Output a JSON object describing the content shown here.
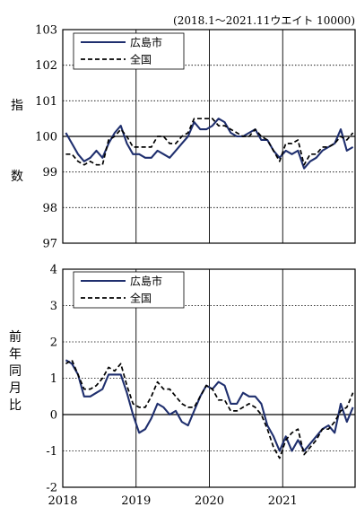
{
  "chart_data": [
    {
      "type": "line",
      "note": "(2018.1〜2021.11ウエイト 10000)",
      "ylabel": [
        "指",
        "数"
      ],
      "ylim": [
        97,
        103
      ],
      "yticks": [
        97,
        98,
        99,
        100,
        101,
        102,
        103
      ],
      "baseline": 100,
      "grid": "dotted horizontal, solid vertical at year boundaries",
      "legend_position": "top-left",
      "series": [
        {
          "name": "広島市",
          "color": "#1f2f6e",
          "style": "solid",
          "values": [
            100.1,
            99.8,
            99.5,
            99.3,
            99.4,
            99.6,
            99.4,
            99.8,
            100.1,
            100.3,
            99.8,
            99.5,
            99.5,
            99.4,
            99.4,
            99.6,
            99.5,
            99.4,
            99.6,
            99.8,
            100.0,
            100.4,
            100.2,
            100.2,
            100.3,
            100.5,
            100.4,
            100.1,
            100.0,
            100.0,
            100.1,
            100.2,
            99.9,
            99.9,
            99.6,
            99.4,
            99.6,
            99.5,
            99.6,
            99.1,
            99.3,
            99.4,
            99.6,
            99.7,
            99.8,
            100.2,
            99.6,
            99.7
          ],
          "x_start": "2018-01"
        },
        {
          "name": "全国",
          "color": "#000000",
          "style": "dashed",
          "values": [
            99.5,
            99.5,
            99.3,
            99.2,
            99.3,
            99.2,
            99.2,
            99.9,
            100.0,
            100.2,
            100.0,
            99.7,
            99.7,
            99.7,
            99.7,
            100.0,
            100.0,
            99.8,
            99.8,
            100.0,
            100.1,
            100.5,
            100.5,
            100.5,
            100.5,
            100.3,
            100.3,
            100.2,
            100.1,
            100.0,
            100.0,
            100.2,
            100.0,
            99.9,
            99.6,
            99.3,
            99.8,
            99.8,
            99.9,
            99.2,
            99.5,
            99.5,
            99.7,
            99.7,
            99.8,
            100.0,
            99.9,
            100.1
          ],
          "x_start": "2018-01"
        }
      ]
    },
    {
      "type": "line",
      "ylabel": [
        "前",
        "年",
        "同",
        "月",
        "比"
      ],
      "ylim": [
        -2,
        4
      ],
      "yticks": [
        -2,
        -1,
        0,
        1,
        2,
        3,
        4
      ],
      "baseline": 0,
      "grid": "dotted horizontal, solid vertical at year boundaries",
      "legend_position": "top-left",
      "series": [
        {
          "name": "広島市",
          "color": "#1f2f6e",
          "style": "solid",
          "values": [
            1.5,
            1.4,
            1.1,
            0.5,
            0.5,
            0.6,
            0.7,
            1.1,
            1.1,
            1.1,
            0.6,
            0.0,
            -0.5,
            -0.4,
            -0.1,
            0.3,
            0.2,
            0.0,
            0.1,
            -0.2,
            -0.3,
            0.1,
            0.5,
            0.8,
            0.7,
            0.9,
            0.8,
            0.3,
            0.3,
            0.6,
            0.5,
            0.5,
            0.3,
            -0.3,
            -0.6,
            -1.0,
            -0.6,
            -1.0,
            -0.7,
            -1.0,
            -0.8,
            -0.6,
            -0.4,
            -0.3,
            -0.5,
            0.3,
            -0.2,
            0.2
          ],
          "x_start": "2018-01"
        },
        {
          "name": "全国",
          "color": "#000000",
          "style": "dashed",
          "values": [
            1.4,
            1.5,
            1.1,
            0.7,
            0.7,
            0.8,
            1.0,
            1.3,
            1.2,
            1.4,
            0.8,
            0.3,
            0.2,
            0.2,
            0.5,
            0.9,
            0.7,
            0.7,
            0.5,
            0.3,
            0.2,
            0.2,
            0.5,
            0.8,
            0.7,
            0.4,
            0.4,
            0.1,
            0.1,
            0.2,
            0.3,
            0.2,
            0.0,
            -0.4,
            -0.9,
            -1.2,
            -0.7,
            -0.5,
            -0.4,
            -1.1,
            -0.9,
            -0.7,
            -0.4,
            -0.4,
            -0.2,
            0.1,
            0.2,
            0.6
          ],
          "x_start": "2018-01"
        }
      ]
    }
  ],
  "x_axis": {
    "year_labels": [
      "2018",
      "2019",
      "2020",
      "2021"
    ],
    "x_start": "2018-01",
    "months": 48
  }
}
